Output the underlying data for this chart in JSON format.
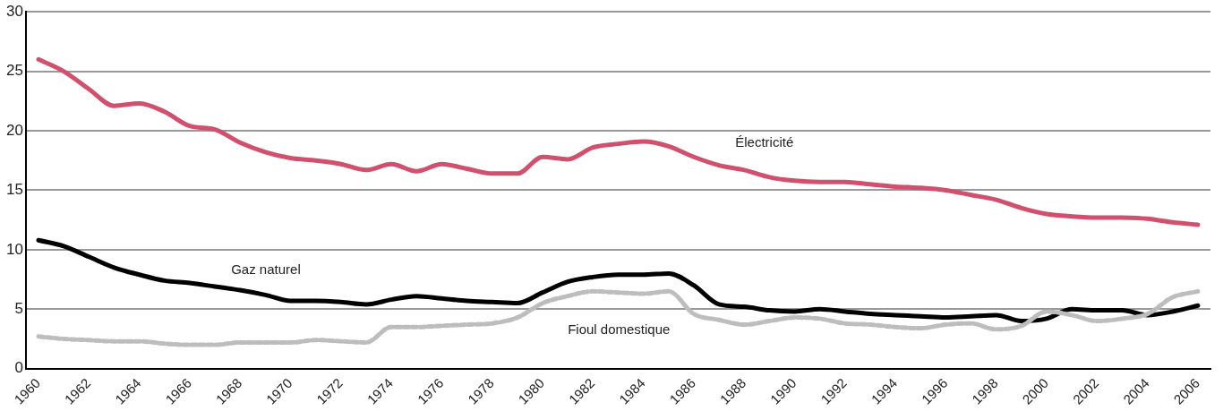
{
  "chart_data": {
    "type": "line",
    "categories": [
      "1960",
      null,
      "1962",
      null,
      "1964",
      null,
      "1966",
      null,
      "1968",
      null,
      "1970",
      null,
      "1972",
      null,
      "1974",
      null,
      "1976",
      null,
      "1978",
      null,
      "1980",
      null,
      "1982",
      null,
      "1984",
      null,
      "1986",
      null,
      "1988",
      null,
      "1990",
      null,
      "1992",
      null,
      "1994",
      null,
      "1996",
      null,
      "1998",
      null,
      "2000",
      null,
      "2002",
      null,
      "2004",
      null,
      "2006"
    ],
    "series": [
      {
        "name": "Électricité",
        "color": "#d0506e",
        "line_style": "solid",
        "values": [
          26,
          25,
          23.5,
          22.1,
          22.3,
          21.6,
          20.4,
          20.1,
          19.0,
          18.2,
          17.7,
          17.5,
          17.2,
          16.7,
          17.2,
          16.6,
          17.2,
          16.8,
          16.4,
          16.4,
          17.8,
          17.6,
          18.6,
          18.9,
          19.1,
          18.7,
          17.8,
          17.1,
          16.7,
          16.1,
          15.8,
          15.7,
          15.7,
          15.5,
          15.3,
          15.2,
          15.0,
          14.6,
          14.2,
          13.5,
          13.0,
          12.8,
          12.7,
          12.7,
          12.6,
          12.3,
          12.1
        ]
      },
      {
        "name": "Gaz naturel",
        "color": "#000000",
        "line_style": "solid",
        "values": [
          10.8,
          10.3,
          9.4,
          8.5,
          7.9,
          7.4,
          7.2,
          6.9,
          6.6,
          6.2,
          5.7,
          5.7,
          5.6,
          5.4,
          5.8,
          6.1,
          5.9,
          5.7,
          5.6,
          5.5,
          6.4,
          7.3,
          7.7,
          7.9,
          7.9,
          8.0,
          7.0,
          5.4,
          5.2,
          4.9,
          4.8,
          5.0,
          4.8,
          4.6,
          4.5,
          4.4,
          4.3,
          4.4,
          4.5,
          4.0,
          4.2,
          5.0,
          4.9,
          4.9,
          4.5,
          4.8,
          5.3
        ]
      },
      {
        "name": "Fioul domestique",
        "color": "#bdbdbd",
        "line_style": "dashed",
        "values": [
          2.7,
          2.5,
          2.4,
          2.3,
          2.3,
          2.1,
          2.0,
          2.0,
          2.2,
          2.2,
          2.2,
          2.4,
          2.3,
          2.2,
          3.5,
          3.5,
          3.6,
          3.7,
          3.8,
          4.3,
          5.5,
          6.1,
          6.5,
          6.4,
          6.3,
          6.5,
          4.6,
          4.1,
          3.7,
          4.0,
          4.3,
          4.2,
          3.8,
          3.7,
          3.5,
          3.4,
          3.7,
          3.8,
          3.3,
          3.6,
          4.8,
          4.5,
          4.0,
          4.2,
          4.6,
          6.0,
          6.5
        ]
      }
    ],
    "ylim": [
      0,
      30
    ],
    "yticks": [
      0,
      5,
      10,
      15,
      20,
      25,
      30
    ],
    "grid": "y",
    "legend": false,
    "marker": "none"
  }
}
